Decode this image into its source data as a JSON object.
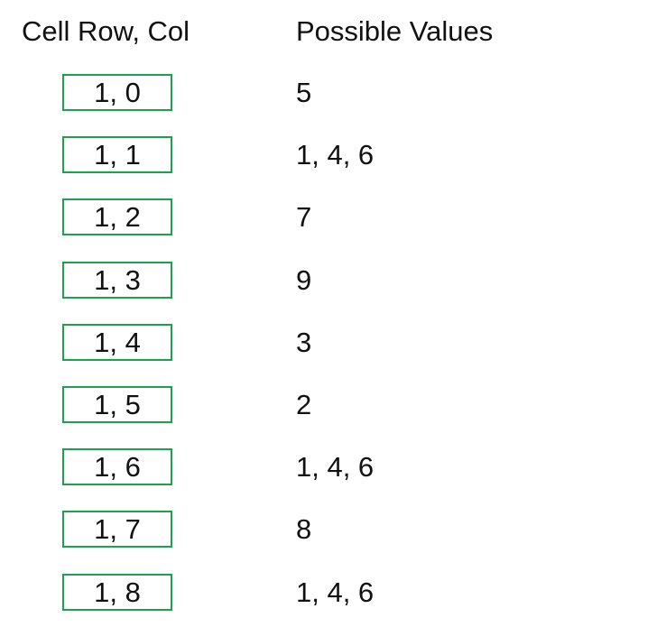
{
  "headers": {
    "cell": "Cell Row, Col",
    "values": "Possible Values"
  },
  "rows": [
    {
      "cell": "1, 0",
      "values": "5"
    },
    {
      "cell": "1, 1",
      "values": "1, 4, 6"
    },
    {
      "cell": "1, 2",
      "values": "7"
    },
    {
      "cell": "1, 3",
      "values": "9"
    },
    {
      "cell": "1, 4",
      "values": "3"
    },
    {
      "cell": "1, 5",
      "values": "2"
    },
    {
      "cell": "1, 6",
      "values": "1, 4, 6"
    },
    {
      "cell": "1, 7",
      "values": "8"
    },
    {
      "cell": "1, 8",
      "values": "1, 4, 6"
    }
  ],
  "colors": {
    "box_border": "#1aa34a",
    "text": "#111111",
    "background": "#ffffff"
  }
}
